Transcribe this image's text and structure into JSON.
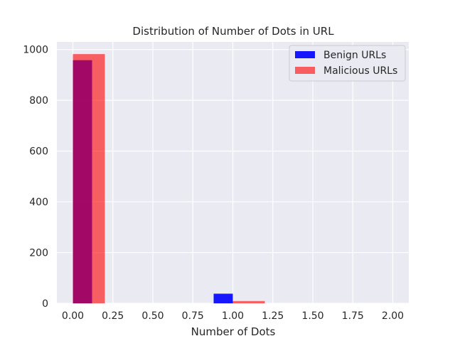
{
  "chart_data": {
    "type": "bar",
    "title": "Distribution of Number of Dots in URL",
    "xlabel": "Number of Dots",
    "ylabel": "",
    "xlim": [
      -0.1,
      2.1
    ],
    "ylim": [
      0,
      1030
    ],
    "x_ticks": [
      "0.00",
      "0.25",
      "0.50",
      "0.75",
      "1.00",
      "1.25",
      "1.50",
      "1.75",
      "2.00"
    ],
    "x_tick_values": [
      0,
      0.25,
      0.5,
      0.75,
      1.0,
      1.25,
      1.5,
      1.75,
      2.0
    ],
    "y_ticks": [
      "0",
      "200",
      "400",
      "600",
      "800",
      "1000"
    ],
    "y_tick_values": [
      0,
      200,
      400,
      600,
      800,
      1000
    ],
    "grid": true,
    "legend_position": "top-right",
    "series": [
      {
        "name": "Benign URLs",
        "color": "#0000ff",
        "opacity": 0.9,
        "bars": [
          {
            "x0": 0.0,
            "x1": 0.12,
            "value": 958
          },
          {
            "x0": 0.88,
            "x1": 1.0,
            "value": 0
          },
          {
            "x0": 0.88,
            "x1": 1.0,
            "value": 38
          }
        ]
      },
      {
        "name": "Malicious URLs",
        "color": "#ff0000",
        "opacity": 0.6,
        "bars": [
          {
            "x0": 0.0,
            "x1": 0.2,
            "value": 982
          },
          {
            "x0": 1.0,
            "x1": 1.2,
            "value": 9
          }
        ]
      }
    ]
  }
}
